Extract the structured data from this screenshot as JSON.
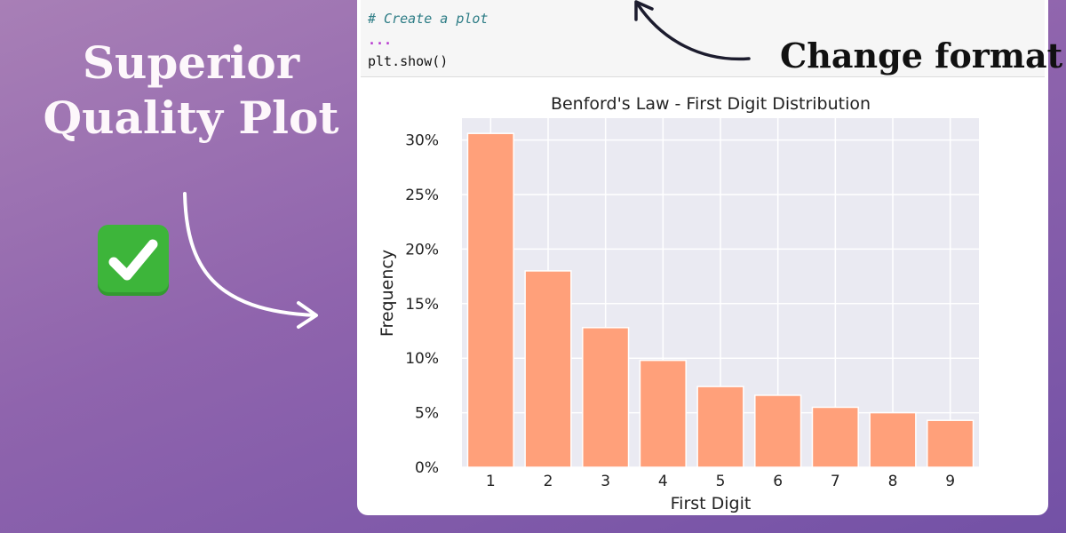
{
  "headline": {
    "line1": "Superior",
    "line2": "Quality Plot"
  },
  "code": {
    "comment": "# Create a plot",
    "ellipsis": "...",
    "show": "plt.show()"
  },
  "callout": {
    "label": "Change format"
  },
  "colors": {
    "bar": "#ffa07a",
    "plot_bg": "#eaeaf2",
    "check_badge": "#3db53a"
  },
  "icons": {
    "badge": "check-mark-icon"
  },
  "chart_data": {
    "type": "bar",
    "title": "Benford's Law - First Digit Distribution",
    "xlabel": "First Digit",
    "ylabel": "Frequency",
    "categories": [
      "1",
      "2",
      "3",
      "4",
      "5",
      "6",
      "7",
      "8",
      "9"
    ],
    "values": [
      0.306,
      0.18,
      0.128,
      0.098,
      0.074,
      0.066,
      0.055,
      0.05,
      0.043
    ],
    "ylim": [
      0,
      0.32
    ],
    "yticks": [
      0,
      0.05,
      0.1,
      0.15,
      0.2,
      0.25,
      0.3
    ],
    "ytick_labels": [
      "0%",
      "5%",
      "10%",
      "15%",
      "20%",
      "25%",
      "30%"
    ],
    "grid": true,
    "style": "seaborn"
  }
}
